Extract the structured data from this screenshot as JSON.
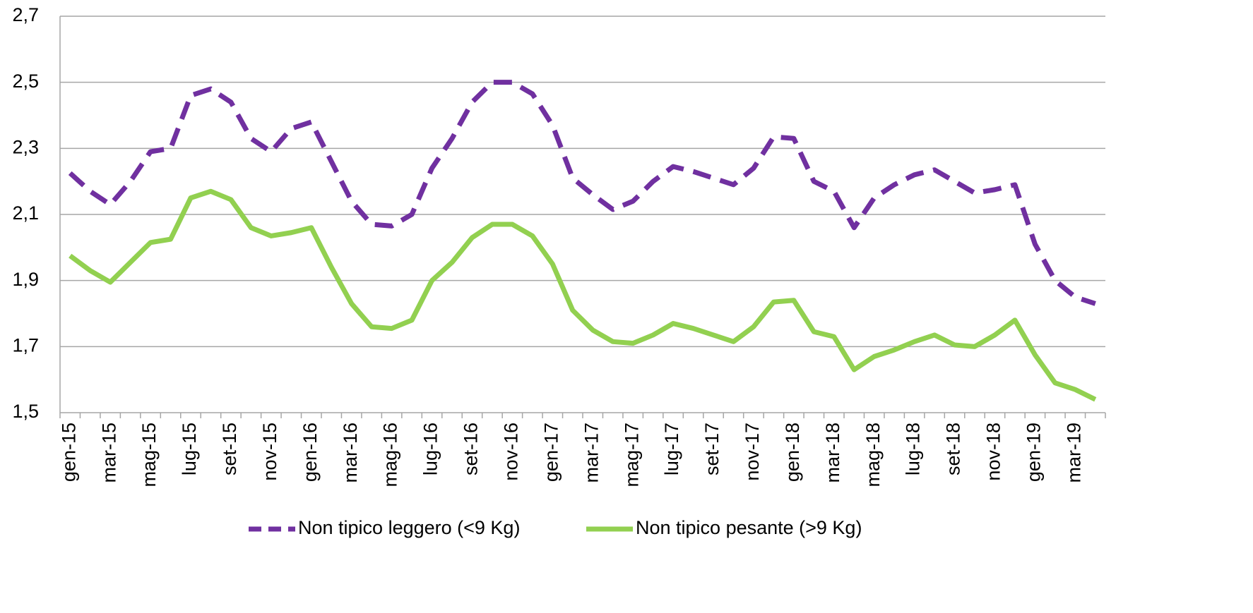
{
  "chart_data": {
    "type": "line",
    "categories": [
      "gen-15",
      null,
      "mar-15",
      null,
      "mag-15",
      null,
      "lug-15",
      null,
      "set-15",
      null,
      "nov-15",
      null,
      "gen-16",
      null,
      "mar-16",
      null,
      "mag-16",
      null,
      "lug-16",
      null,
      "set-16",
      null,
      "nov-16",
      null,
      "gen-17",
      null,
      "mar-17",
      null,
      "mag-17",
      null,
      "lug-17",
      null,
      "set-17",
      null,
      "nov-17",
      null,
      "gen-18",
      null,
      "mar-18",
      null,
      "mag-18",
      null,
      "lug-18",
      null,
      "set-18",
      null,
      "nov-18",
      null,
      "gen-19",
      null,
      "mar-19",
      null
    ],
    "series": [
      {
        "name": "Non tipico leggero (<9 Kg)",
        "color": "#7030a0",
        "dashed": true,
        "values": [
          2.225,
          2.17,
          2.13,
          2.2,
          2.29,
          2.3,
          2.46,
          2.48,
          2.44,
          2.33,
          2.29,
          2.36,
          2.38,
          2.26,
          2.14,
          2.07,
          2.065,
          2.1,
          2.24,
          2.33,
          2.44,
          2.5,
          2.5,
          2.465,
          2.37,
          2.21,
          2.16,
          2.115,
          2.14,
          2.2,
          2.245,
          2.23,
          2.21,
          2.19,
          2.24,
          2.335,
          2.33,
          2.2,
          2.17,
          2.06,
          2.15,
          2.19,
          2.22,
          2.235,
          2.2,
          2.165,
          2.175,
          2.19,
          2.01,
          1.9,
          1.85,
          1.83
        ]
      },
      {
        "name": "Non tipico pesante (>9 Kg)",
        "color": "#92d050",
        "dashed": false,
        "values": [
          1.975,
          1.93,
          1.895,
          1.955,
          2.015,
          2.025,
          2.15,
          2.17,
          2.145,
          2.06,
          2.035,
          2.045,
          2.06,
          1.94,
          1.83,
          1.76,
          1.755,
          1.78,
          1.9,
          1.955,
          2.03,
          2.07,
          2.07,
          2.035,
          1.95,
          1.81,
          1.75,
          1.715,
          1.71,
          1.735,
          1.77,
          1.755,
          1.735,
          1.715,
          1.76,
          1.835,
          1.84,
          1.745,
          1.73,
          1.63,
          1.67,
          1.69,
          1.715,
          1.735,
          1.705,
          1.7,
          1.735,
          1.78,
          1.675,
          1.59,
          1.57,
          1.54
        ]
      }
    ],
    "ylim": [
      1.5,
      2.7
    ],
    "yticks": [
      {
        "value": 1.5,
        "label": "1,5"
      },
      {
        "value": 1.7,
        "label": "1,7"
      },
      {
        "value": 1.9,
        "label": "1,9"
      },
      {
        "value": 2.1,
        "label": "2,1"
      },
      {
        "value": 2.3,
        "label": "2,3"
      },
      {
        "value": 2.5,
        "label": "2,5"
      },
      {
        "value": 2.7,
        "label": "2,7"
      }
    ],
    "grid": true,
    "legend": "bottom"
  }
}
